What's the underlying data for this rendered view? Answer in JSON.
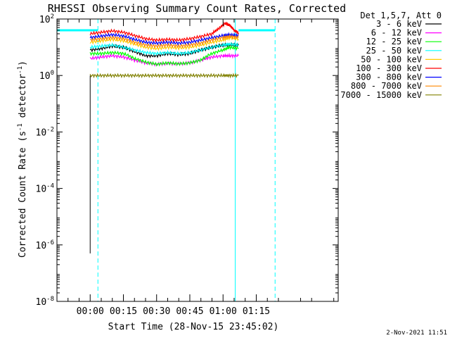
{
  "chart_data": {
    "type": "line",
    "title": "RHESSI Observing Summary Count Rates, Corrected",
    "xlabel": "Start Time (28-Nov-15 23:45:02)",
    "ylabel_main": "Corrected Count Rate (s",
    "ylabel_sup1": "-1",
    "ylabel_mid": " detector",
    "ylabel_sup2": "-1",
    "ylabel_end": ")",
    "y_scale": "log",
    "ylim_exp": [
      -8,
      2
    ],
    "y_tick_exps": [
      -8,
      -6,
      -4,
      -2,
      0,
      2
    ],
    "xlim_min": [
      -15,
      112
    ],
    "x_ticks": [
      {
        "min": 0,
        "label": "00:00"
      },
      {
        "min": 15,
        "label": "00:15"
      },
      {
        "min": 30,
        "label": "00:30"
      },
      {
        "min": 45,
        "label": "00:45"
      },
      {
        "min": 60,
        "label": "01:00"
      },
      {
        "min": 75,
        "label": "01:15"
      }
    ],
    "legend_header": "Det 1,5,7, Att 0",
    "legend_placement": "top-right",
    "footer_date": "2-Nov-2021 11:51",
    "grid": false,
    "annotations": {
      "dashed_cyan_min": [
        3.5,
        83.5
      ],
      "solid_cyan_min": [
        -15,
        65.5
      ],
      "att_bar_y": 40
    },
    "series": [
      {
        "name": "3 - 6 keV",
        "color": "#000000",
        "x": [
          0,
          5,
          10,
          15,
          20,
          25,
          30,
          35,
          40,
          45,
          50,
          55,
          60,
          63,
          67
        ],
        "y": [
          8,
          9,
          11,
          10,
          7,
          5,
          5,
          6,
          5.5,
          6,
          8,
          10,
          12,
          12,
          12
        ]
      },
      {
        "name": "6 - 12 keV",
        "color": "#ff00ff",
        "x": [
          0,
          5,
          10,
          15,
          20,
          25,
          30,
          35,
          40,
          45,
          50,
          55,
          60,
          63,
          67
        ],
        "y": [
          4,
          4.5,
          5,
          4.5,
          3.5,
          2.8,
          2.5,
          2.7,
          2.6,
          2.8,
          3.5,
          4.5,
          5,
          5,
          5
        ]
      },
      {
        "name": "12 - 25 keV",
        "color": "#00ff00",
        "x": [
          0,
          5,
          10,
          15,
          20,
          25,
          30,
          35,
          40,
          45,
          50,
          55,
          60,
          63,
          67
        ],
        "y": [
          6,
          6,
          6.5,
          6,
          4,
          3,
          2.5,
          2.8,
          2.6,
          2.8,
          3.5,
          6,
          8,
          10,
          9
        ]
      },
      {
        "name": "25 - 50 keV",
        "color": "#00ffff",
        "x": [
          0,
          5,
          10,
          15,
          20,
          25,
          30,
          35,
          40,
          45,
          50,
          55,
          60,
          63,
          67
        ],
        "y": [
          10,
          11,
          12,
          10,
          8,
          6.5,
          6,
          6.5,
          6,
          6.5,
          8,
          10,
          12,
          13,
          12
        ]
      },
      {
        "name": "50 - 100 keV",
        "color": "#ffcc00",
        "x": [
          0,
          5,
          10,
          15,
          20,
          25,
          30,
          35,
          40,
          45,
          50,
          55,
          60,
          63,
          67
        ],
        "y": [
          15,
          17,
          19,
          17,
          13,
          10,
          9,
          10,
          9.5,
          10,
          12,
          15,
          18,
          22,
          20
        ]
      },
      {
        "name": "100 - 300 keV",
        "color": "#ff0000",
        "x": [
          0,
          5,
          10,
          15,
          20,
          25,
          30,
          35,
          40,
          45,
          50,
          55,
          58,
          61,
          63,
          65,
          67
        ],
        "y": [
          30,
          34,
          38,
          34,
          26,
          20,
          18,
          19,
          18,
          20,
          24,
          30,
          45,
          70,
          60,
          40,
          32
        ]
      },
      {
        "name": "300 - 800 keV",
        "color": "#0000ff",
        "x": [
          0,
          5,
          10,
          15,
          20,
          25,
          30,
          35,
          40,
          45,
          50,
          55,
          60,
          63,
          67
        ],
        "y": [
          22,
          25,
          28,
          25,
          19,
          15,
          14,
          15,
          14,
          15,
          18,
          22,
          26,
          28,
          26
        ]
      },
      {
        "name": "800 - 7000 keV",
        "color": "#ff8800",
        "x": [
          0,
          5,
          10,
          15,
          20,
          25,
          30,
          35,
          40,
          45,
          50,
          55,
          60,
          63,
          67
        ],
        "y": [
          18,
          20,
          22,
          20,
          15,
          12,
          11,
          12,
          11,
          12,
          14,
          18,
          22,
          24,
          22
        ]
      },
      {
        "name": "7000 - 15000 keV",
        "color": "#808000",
        "x": [
          0,
          5,
          10,
          15,
          20,
          25,
          30,
          35,
          40,
          45,
          50,
          55,
          60,
          63,
          67
        ],
        "y": [
          1,
          1,
          1,
          1,
          1,
          1,
          1,
          1,
          1,
          1,
          1,
          1,
          1,
          1,
          1
        ]
      }
    ]
  }
}
